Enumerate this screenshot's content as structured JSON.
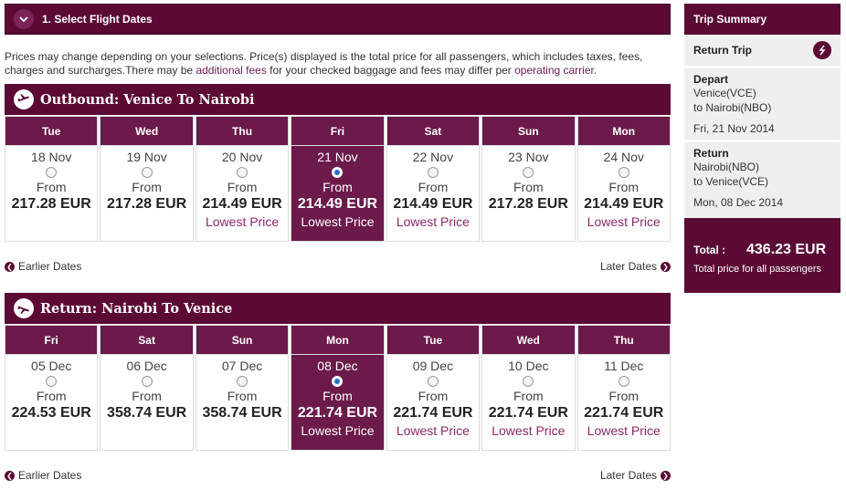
{
  "step": {
    "label": "1. Select Flight Dates"
  },
  "note": {
    "text1": "Prices may change depending on your selections. Price(s) displayed is the total price for all passengers, which includes taxes, fees, charges and surcharges.There may be ",
    "link1": "additional fees",
    "text2": " for your checked baggage and fees may differ per ",
    "link2": "operating carrier",
    "text3": "."
  },
  "outbound": {
    "title": "Outbound: Venice To Nairobi",
    "days": [
      {
        "dow": "Tue",
        "date": "18 Nov",
        "from": "From",
        "price": "217.28 EUR",
        "lowest": "",
        "selected": false
      },
      {
        "dow": "Wed",
        "date": "19 Nov",
        "from": "From",
        "price": "217.28 EUR",
        "lowest": "",
        "selected": false
      },
      {
        "dow": "Thu",
        "date": "20 Nov",
        "from": "From",
        "price": "214.49 EUR",
        "lowest": "Lowest Price",
        "selected": false
      },
      {
        "dow": "Fri",
        "date": "21 Nov",
        "from": "From",
        "price": "214.49 EUR",
        "lowest": "Lowest Price",
        "selected": true
      },
      {
        "dow": "Sat",
        "date": "22 Nov",
        "from": "From",
        "price": "214.49 EUR",
        "lowest": "Lowest Price",
        "selected": false
      },
      {
        "dow": "Sun",
        "date": "23 Nov",
        "from": "From",
        "price": "217.28 EUR",
        "lowest": "",
        "selected": false
      },
      {
        "dow": "Mon",
        "date": "24 Nov",
        "from": "From",
        "price": "214.49 EUR",
        "lowest": "Lowest Price",
        "selected": false
      }
    ],
    "earlier": "Earlier Dates",
    "later": "Later Dates"
  },
  "return": {
    "title": "Return: Nairobi To Venice",
    "days": [
      {
        "dow": "Fri",
        "date": "05 Dec",
        "from": "From",
        "price": "224.53 EUR",
        "lowest": "",
        "selected": false
      },
      {
        "dow": "Sat",
        "date": "06 Dec",
        "from": "From",
        "price": "358.74 EUR",
        "lowest": "",
        "selected": false
      },
      {
        "dow": "Sun",
        "date": "07 Dec",
        "from": "From",
        "price": "358.74 EUR",
        "lowest": "",
        "selected": false
      },
      {
        "dow": "Mon",
        "date": "08 Dec",
        "from": "From",
        "price": "221.74 EUR",
        "lowest": "Lowest Price",
        "selected": true
      },
      {
        "dow": "Tue",
        "date": "09 Dec",
        "from": "From",
        "price": "221.74 EUR",
        "lowest": "Lowest Price",
        "selected": false
      },
      {
        "dow": "Wed",
        "date": "10 Dec",
        "from": "From",
        "price": "221.74 EUR",
        "lowest": "Lowest Price",
        "selected": false
      },
      {
        "dow": "Thu",
        "date": "11 Dec",
        "from": "From",
        "price": "221.74 EUR",
        "lowest": "Lowest Price",
        "selected": false
      }
    ],
    "earlier": "Earlier Dates",
    "later": "Later Dates"
  },
  "summary": {
    "title": "Trip Summary",
    "trip_type": "Return Trip",
    "depart": {
      "label": "Depart",
      "from": "Venice(VCE)",
      "to": "to Nairobi(NBO)",
      "date": "Fri, 21 Nov 2014"
    },
    "return": {
      "label": "Return",
      "from": "Nairobi(NBO)",
      "to": "to Venice(VCE)",
      "date": "Mon, 08 Dec 2014"
    },
    "total_label": "Total :",
    "total_value": "436.23  EUR",
    "total_note": "Total price for all passengers"
  },
  "icons": {
    "step": "chevron-down-icon",
    "outbound": "plane-takeoff-icon",
    "return": "plane-landing-icon",
    "trip": "swap-icon"
  },
  "colors": {
    "brand": "#5b0a35",
    "header_cell": "#6b1a4a",
    "link": "#8a2a6a"
  }
}
